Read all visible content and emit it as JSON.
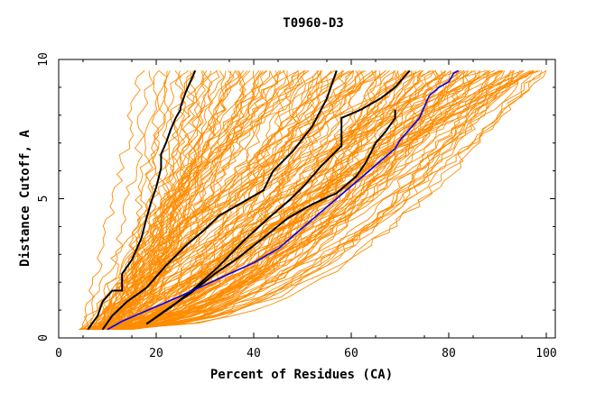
{
  "chart_data": {
    "type": "line",
    "title": "T0960-D3",
    "xlabel": "Percent of Residues (CA)",
    "ylabel": "Distance Cutoff, A",
    "xlim": [
      0,
      100
    ],
    "ylim": [
      0,
      10
    ],
    "x_ticks": [
      "0",
      "20",
      "40",
      "60",
      "80",
      "100"
    ],
    "y_ticks": [
      "0",
      "5",
      "10"
    ],
    "grid": false,
    "legend": "none",
    "background_color": "#ffffff",
    "models_color": "#ff8c00",
    "highlight_color": "#000000",
    "reference_color": "#0000ff",
    "highlight_series": [
      {
        "x": [
          6,
          8,
          9,
          11,
          13,
          13,
          15,
          17,
          18,
          19,
          20,
          21,
          21,
          22,
          23,
          24,
          25,
          25,
          26,
          27,
          28
        ],
        "y": [
          0.3,
          0.8,
          1.3,
          1.7,
          1.7,
          2.3,
          2.8,
          3.6,
          4.3,
          4.9,
          5.4,
          6.1,
          6.6,
          7.0,
          7.5,
          7.9,
          8.2,
          8.3,
          8.8,
          9.2,
          9.6
        ]
      },
      {
        "x": [
          9,
          11,
          14,
          18,
          22,
          26,
          30,
          33,
          37,
          42,
          44,
          48,
          52,
          55,
          56,
          57
        ],
        "y": [
          0.3,
          0.8,
          1.3,
          1.8,
          2.6,
          3.3,
          3.9,
          4.4,
          4.8,
          5.3,
          6.0,
          6.7,
          7.6,
          8.6,
          9.1,
          9.6
        ]
      },
      {
        "x": [
          18,
          23,
          28,
          33,
          38,
          43,
          47,
          50,
          54,
          58,
          58,
          62,
          66,
          69,
          71,
          72
        ],
        "y": [
          0.5,
          1.1,
          1.8,
          2.6,
          3.5,
          4.3,
          4.9,
          5.4,
          6.2,
          6.9,
          7.9,
          8.2,
          8.6,
          9.0,
          9.4,
          9.6
        ]
      },
      {
        "x": [
          18,
          22,
          27,
          32,
          37,
          42,
          47,
          52,
          57,
          61,
          63,
          65,
          67,
          69,
          69
        ],
        "y": [
          0.5,
          1.0,
          1.6,
          2.3,
          2.9,
          3.6,
          4.3,
          4.8,
          5.2,
          5.8,
          6.3,
          7.0,
          7.4,
          7.9,
          8.2
        ]
      }
    ],
    "reference_series": {
      "x": [
        10,
        13,
        17,
        21,
        25,
        30,
        35,
        40,
        45,
        49,
        53,
        57,
        61,
        65,
        69,
        70,
        72,
        74,
        75,
        76,
        78,
        80,
        81,
        82
      ],
      "y": [
        0.3,
        0.6,
        0.9,
        1.2,
        1.5,
        1.9,
        2.3,
        2.7,
        3.2,
        3.8,
        4.4,
        5.0,
        5.6,
        6.2,
        6.8,
        7.1,
        7.5,
        7.9,
        8.3,
        8.7,
        9.0,
        9.2,
        9.5,
        9.6
      ]
    }
  }
}
